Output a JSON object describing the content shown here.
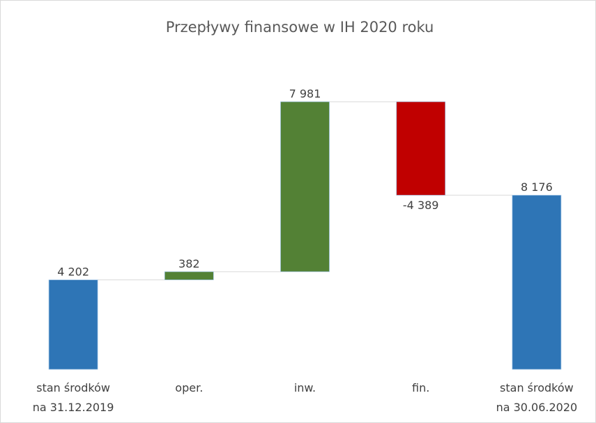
{
  "chart_data": {
    "type": "waterfall",
    "title": "Przepływy finansowe w IH 2020 roku",
    "categories": [
      [
        "stan środków",
        "na 31.12.2019"
      ],
      [
        "oper."
      ],
      [
        "inw."
      ],
      [
        "fin."
      ],
      [
        "stan środków",
        "na 30.06.2020"
      ]
    ],
    "values": [
      4202,
      382,
      7981,
      -4389,
      8176
    ],
    "value_labels": [
      "4 202",
      "382",
      "7 981",
      "-4 389",
      "8 176"
    ],
    "is_total": [
      true,
      false,
      false,
      false,
      true
    ],
    "colors": [
      "#2e75b6",
      "#538135",
      "#538135",
      "#c00000",
      "#2e75b6"
    ]
  }
}
